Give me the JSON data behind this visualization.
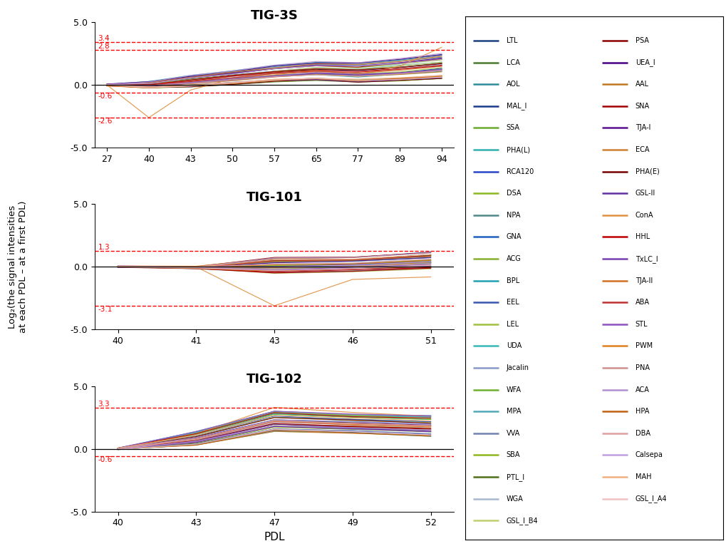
{
  "lectins_left": [
    {
      "name": "LTL",
      "color": "#1a4080"
    },
    {
      "name": "LCA",
      "color": "#4a7c2f"
    },
    {
      "name": "AOL",
      "color": "#2e8b9a"
    },
    {
      "name": "MAL_I",
      "color": "#1a3a8a"
    },
    {
      "name": "SSA",
      "color": "#6aaa2e"
    },
    {
      "name": "PHA(L)",
      "color": "#30b0b0"
    },
    {
      "name": "RCA120",
      "color": "#2848c8"
    },
    {
      "name": "DSA",
      "color": "#8ab820"
    },
    {
      "name": "NPA",
      "color": "#508888"
    },
    {
      "name": "GNA",
      "color": "#2060c0"
    },
    {
      "name": "ACG",
      "color": "#88b030"
    },
    {
      "name": "BPL",
      "color": "#20a0b0"
    },
    {
      "name": "EEL",
      "color": "#3858b0"
    },
    {
      "name": "LEL",
      "color": "#a0c040"
    },
    {
      "name": "UDA",
      "color": "#38b8b8"
    },
    {
      "name": "Jacalin",
      "color": "#8898c8"
    },
    {
      "name": "WFA",
      "color": "#70b030"
    },
    {
      "name": "MPA",
      "color": "#50a8b8"
    },
    {
      "name": "VVA",
      "color": "#7080b0"
    },
    {
      "name": "SBA",
      "color": "#90b820"
    },
    {
      "name": "PTL_I",
      "color": "#507018"
    },
    {
      "name": "WGA",
      "color": "#a8b8d0"
    },
    {
      "name": "GSL_I_B4",
      "color": "#c0d070"
    }
  ],
  "lectins_right": [
    {
      "name": "PSA",
      "color": "#8b0000"
    },
    {
      "name": "UEA_I",
      "color": "#4b0082"
    },
    {
      "name": "AAL",
      "color": "#c07820"
    },
    {
      "name": "SNA",
      "color": "#a00000"
    },
    {
      "name": "TJA-I",
      "color": "#5a1090"
    },
    {
      "name": "ECA",
      "color": "#d08030"
    },
    {
      "name": "PHA(E)",
      "color": "#780000"
    },
    {
      "name": "GSL-II",
      "color": "#6030a0"
    },
    {
      "name": "ConA",
      "color": "#e09040"
    },
    {
      "name": "HHL",
      "color": "#c00000"
    },
    {
      "name": "TxLC_I",
      "color": "#7840b0"
    },
    {
      "name": "TJA-II",
      "color": "#d07020"
    },
    {
      "name": "ABA",
      "color": "#c03030"
    },
    {
      "name": "STL",
      "color": "#9050c0"
    },
    {
      "name": "PWM",
      "color": "#e08020"
    },
    {
      "name": "PNA",
      "color": "#d09090"
    },
    {
      "name": "ACA",
      "color": "#b090d0"
    },
    {
      "name": "HPA",
      "color": "#c06010"
    },
    {
      "name": "DBA",
      "color": "#e0a0a0"
    },
    {
      "name": "Calsepa",
      "color": "#c0a0e0"
    },
    {
      "name": "MAH",
      "color": "#f0b080"
    },
    {
      "name": "GSL_I_A4",
      "color": "#f0c0c0"
    }
  ],
  "panels": [
    {
      "title": "TIG-3S",
      "pdls": [
        27,
        40,
        43,
        50,
        57,
        65,
        77,
        89,
        94
      ],
      "hlines_pos": [
        3.4,
        2.8
      ],
      "hlines_neg": [
        -0.6,
        -2.6
      ],
      "ylim": [
        -5.0,
        5.0
      ],
      "yticks": [
        -5.0,
        0.0,
        5.0
      ],
      "hline_labels_pos": [
        "3.4",
        "2.8"
      ],
      "hline_labels_neg": [
        "-0.6",
        "-2.6"
      ]
    },
    {
      "title": "TIG-101",
      "pdls": [
        40,
        41,
        43,
        46,
        51
      ],
      "hlines_pos": [
        1.3
      ],
      "hlines_neg": [
        -3.1
      ],
      "ylim": [
        -5.0,
        5.0
      ],
      "yticks": [
        -5.0,
        0.0,
        5.0
      ],
      "hline_labels_pos": [
        "1.3"
      ],
      "hline_labels_neg": [
        "-3.1"
      ]
    },
    {
      "title": "TIG-102",
      "pdls": [
        40,
        43,
        47,
        49,
        52
      ],
      "hlines_pos": [
        3.3
      ],
      "hlines_neg": [
        -0.6
      ],
      "ylim": [
        -5.0,
        5.0
      ],
      "yticks": [
        -5.0,
        0.0,
        5.0
      ],
      "hline_labels_pos": [
        "3.3"
      ],
      "hline_labels_neg": [
        "-0.6"
      ]
    }
  ],
  "ylabel": "Log₂(the signal intensities\nat each PDL – at a first PDL)",
  "xlabel": "PDL",
  "background_color": "#ffffff"
}
